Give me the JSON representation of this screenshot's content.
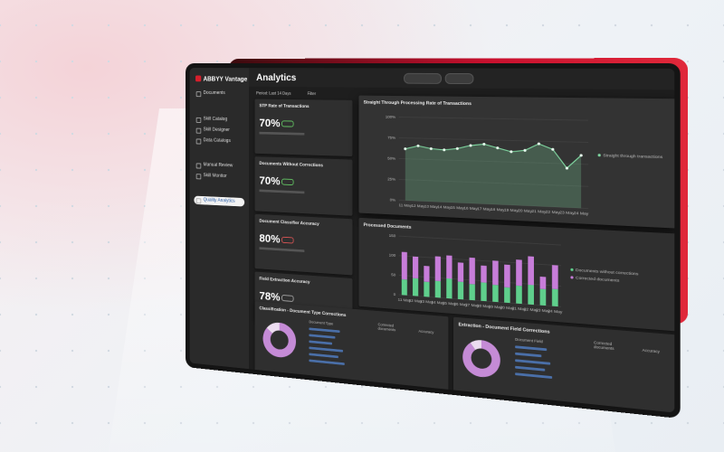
{
  "sidebar": {
    "brand": "ABBYY Vantage",
    "items": [
      "Documents",
      "Skill Catalog",
      "Skill Designer",
      "Data Catalogs",
      "Manual Review",
      "Skill Monitor",
      "Quality Analytics"
    ]
  },
  "header": {
    "title": "Analytics",
    "period": "Period: Last 14 Days",
    "filter": "Filter"
  },
  "kpis": [
    {
      "title": "STP Rate of Transactions",
      "value": "70%"
    },
    {
      "title": "Documents Without Corrections",
      "value": "70%"
    },
    {
      "title": "Document Classifier Accuracy",
      "value": "80%"
    },
    {
      "title": "Field Extraction Accuracy",
      "value": "78%"
    }
  ],
  "tables": [
    {
      "title": "Classification - Document Type Corrections",
      "columns": [
        "Document Type",
        "Corrected documents",
        "Accuracy"
      ]
    },
    {
      "title": "Extraction - Document Field Corrections",
      "columns": [
        "Document Field",
        "Corrected documents",
        "Accuracy"
      ]
    }
  ],
  "chart_data": [
    {
      "type": "line",
      "title": "Straight Through Processing Rate of Transactions",
      "categories": [
        "11 May",
        "12 May",
        "13 May",
        "14 May",
        "15 May",
        "16 May",
        "17 May",
        "18 May",
        "19 May",
        "20 May",
        "21 May",
        "22 May",
        "23 May",
        "24 May"
      ],
      "series": [
        {
          "name": "Straight through transactions",
          "color": "#7fd6a0",
          "values": [
            62,
            66,
            63,
            62,
            64,
            68,
            70,
            66,
            62,
            64,
            72,
            66,
            45,
            60
          ]
        }
      ],
      "ylim": [
        0,
        100
      ],
      "yticks": [
        {
          "value": 0,
          "label": "0%"
        },
        {
          "value": 25,
          "label": "25%"
        },
        {
          "value": 50,
          "label": "50%"
        },
        {
          "value": 75,
          "label": "75%"
        },
        {
          "value": 100,
          "label": "100%"
        }
      ],
      "grid": true
    },
    {
      "type": "stacked_bar",
      "title": "Processed Documents",
      "categories": [
        "11 May",
        "12 May",
        "13 May",
        "14 May",
        "15 May",
        "16 May",
        "17 May",
        "18 May",
        "19 May",
        "20 May",
        "21 May",
        "22 May",
        "23 May",
        "24 May"
      ],
      "series": [
        {
          "name": "Documents without corrections",
          "color": "#5fcf8c",
          "values": [
            40,
            45,
            38,
            42,
            50,
            44,
            40,
            46,
            42,
            38,
            44,
            48,
            40,
            42
          ]
        },
        {
          "name": "Corrected documents",
          "color": "#c77dd9",
          "values": [
            70,
            55,
            40,
            62,
            58,
            48,
            66,
            42,
            60,
            56,
            64,
            70,
            30,
            58
          ]
        }
      ],
      "ylim": [
        0,
        150
      ],
      "yticks": [
        0,
        50,
        100,
        150
      ],
      "grid": true
    },
    {
      "type": "pie",
      "values": [
        86,
        14
      ],
      "colors": [
        "#c58bd6",
        "#ecdcf0"
      ]
    },
    {
      "type": "pie",
      "values": [
        90,
        10
      ],
      "colors": [
        "#c58bd6",
        "#ecdcf0"
      ]
    }
  ]
}
